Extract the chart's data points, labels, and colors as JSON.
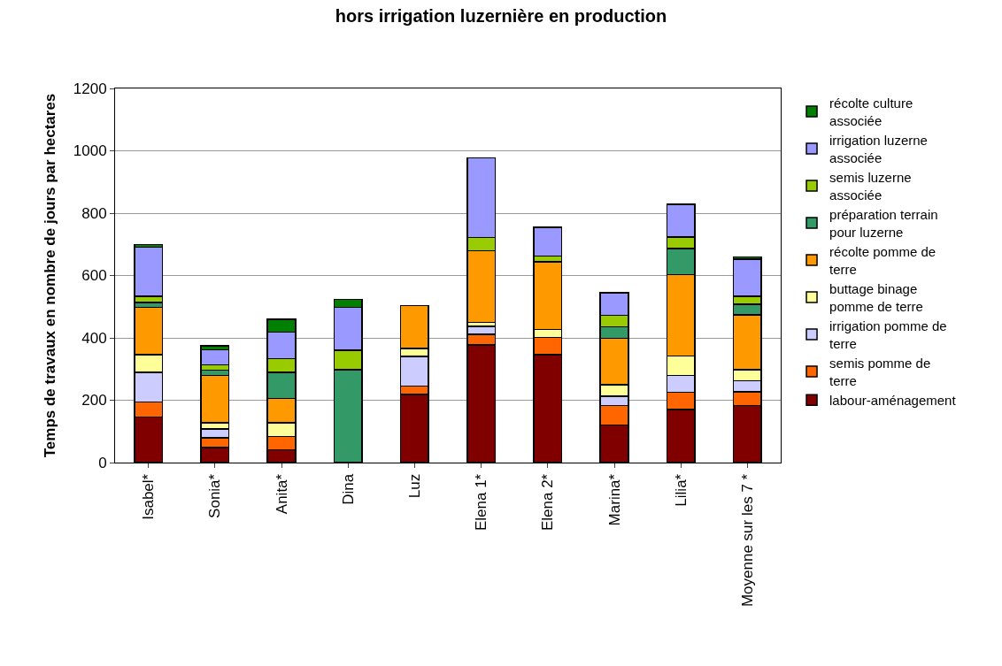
{
  "chart_data": {
    "type": "bar",
    "stacked": true,
    "title": "hors irrigation luzernière en production",
    "ylabel": "Temps de travaux en nombre de jours par hectares",
    "categories": [
      "Isabel*",
      "Sonia*",
      "Anita*",
      "Dina",
      "Luz",
      "Elena 1*",
      "Elena 2*",
      "Marina*",
      "Lilia*",
      "Moyenne sur les 7 *"
    ],
    "series": [
      {
        "name": "labour-aménagement",
        "color": "#800000",
        "values": [
          146,
          48,
          41,
          0,
          218,
          377,
          346,
          121,
          170,
          183
        ]
      },
      {
        "name": "semis pomme de terre",
        "color": "#ff6600",
        "values": [
          48,
          32,
          42,
          0,
          27,
          35,
          55,
          62,
          55,
          44
        ]
      },
      {
        "name": "irrigation pomme de terre",
        "color": "#ccccff",
        "values": [
          96,
          28,
          0,
          0,
          95,
          25,
          0,
          30,
          55,
          35
        ]
      },
      {
        "name": "buttage binage pomme de terre",
        "color": "#ffff99",
        "values": [
          56,
          19,
          44,
          0,
          26,
          13,
          26,
          36,
          62,
          36
        ]
      },
      {
        "name": "récolte pomme de terre",
        "color": "#ff9900",
        "values": [
          152,
          152,
          78,
          0,
          138,
          229,
          217,
          150,
          261,
          176
        ]
      },
      {
        "name": "préparation terrain pour luzerne",
        "color": "#339966",
        "values": [
          15,
          18,
          85,
          298,
          0,
          0,
          0,
          37,
          84,
          34
        ]
      },
      {
        "name": "semis luzerne associée",
        "color": "#99cc00",
        "values": [
          20,
          16,
          43,
          62,
          0,
          43,
          18,
          37,
          37,
          26
        ]
      },
      {
        "name": "irrigation luzerne associée",
        "color": "#9999ff",
        "values": [
          158,
          49,
          85,
          138,
          0,
          255,
          93,
          72,
          104,
          119
        ]
      },
      {
        "name": "récolte culture associée",
        "color": "#008000",
        "values": [
          8,
          12,
          41,
          25,
          0,
          0,
          0,
          0,
          0,
          7
        ]
      }
    ],
    "ylim": [
      0,
      1200
    ],
    "yticks": [
      0,
      200,
      400,
      600,
      800,
      1000,
      1200
    ],
    "grid": "y",
    "legend": "right"
  }
}
